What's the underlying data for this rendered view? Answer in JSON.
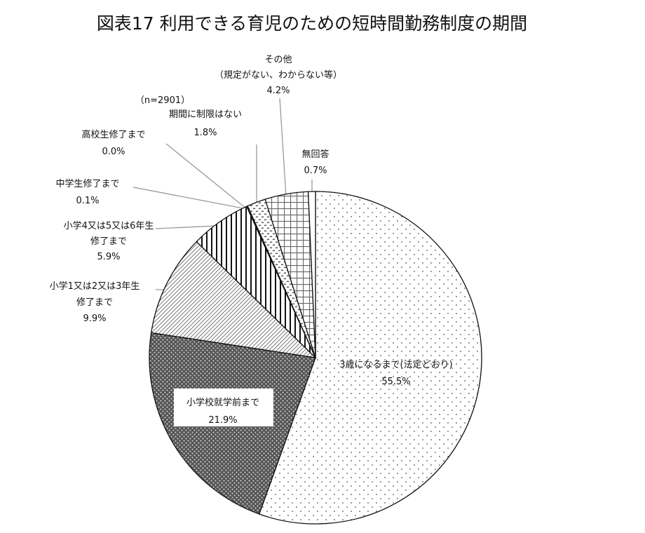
{
  "chart_data": {
    "type": "pie",
    "title": "図表17 利用できる育児のための短時間勤務制度の期間",
    "annotation": "（n=2901）",
    "unit": "%",
    "start": "12 o'clock, clockwise",
    "slices": [
      {
        "label": [
          "3歳になるまで(法定どおり)"
        ],
        "value": 55.5,
        "value_label": "55.5%",
        "pattern": "sparse-dots"
      },
      {
        "label": [
          "小学校就学前まで"
        ],
        "value": 21.9,
        "value_label": "21.9%",
        "pattern": "dense-dark-dots"
      },
      {
        "label": [
          "小学1又は2又は3年生",
          "修了まで"
        ],
        "value": 9.9,
        "value_label": "9.9%",
        "pattern": "diagonal-lines"
      },
      {
        "label": [
          "小学4又は5又は6年生",
          "修了まで"
        ],
        "value": 5.9,
        "value_label": "5.9%",
        "pattern": "vertical-lines"
      },
      {
        "label": [
          "中学生修了まで"
        ],
        "value": 0.1,
        "value_label": "0.1%",
        "pattern": "none"
      },
      {
        "label": [
          "高校生修了まで"
        ],
        "value": 0.0,
        "value_label": "0.0%",
        "pattern": "none"
      },
      {
        "label": [
          "期間に制限はない"
        ],
        "value": 1.8,
        "value_label": "1.8%",
        "pattern": "squiggle-dots"
      },
      {
        "label": [
          "その他",
          "（規定がない、わからない等）"
        ],
        "value": 4.2,
        "value_label": "4.2%",
        "pattern": "grid"
      },
      {
        "label": [
          "無回答"
        ],
        "value": 0.7,
        "value_label": "0.7%",
        "pattern": "white"
      }
    ]
  }
}
